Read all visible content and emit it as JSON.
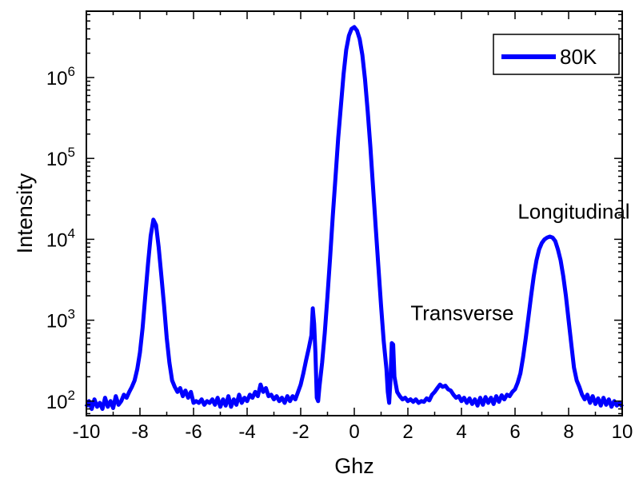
{
  "chart_data": {
    "type": "line",
    "xlabel": "Ghz",
    "ylabel": "Intensity",
    "xlim": [
      -10,
      10
    ],
    "ylim_log10": [
      1.82,
      2.0
    ],
    "ylim_log10_range": [
      1.82,
      6.82
    ],
    "y_scale": "log",
    "grid": false,
    "legend_position": "top-right",
    "x_ticks": [
      "-10",
      "-8",
      "-6",
      "-4",
      "-2",
      "0",
      "2",
      "4",
      "6",
      "8",
      "10"
    ],
    "y_ticks": [
      {
        "base": "10",
        "exp": "2",
        "value": 100
      },
      {
        "base": "10",
        "exp": "3",
        "value": 1000
      },
      {
        "base": "10",
        "exp": "4",
        "value": 10000
      },
      {
        "base": "10",
        "exp": "5",
        "value": 100000
      },
      {
        "base": "10",
        "exp": "6",
        "value": 1000000
      }
    ],
    "annotations": [
      {
        "text": "Transverse",
        "x": 2.1,
        "y": 1000
      },
      {
        "text": "Longitudinal",
        "x": 6.1,
        "y": 18000
      }
    ],
    "series": [
      {
        "name": "80K",
        "color": "#0000ff",
        "points": [
          [
            -10,
            85
          ],
          [
            -9.9,
            100
          ],
          [
            -9.8,
            80
          ],
          [
            -9.7,
            105
          ],
          [
            -9.6,
            85
          ],
          [
            -9.5,
            95
          ],
          [
            -9.4,
            80
          ],
          [
            -9.3,
            110
          ],
          [
            -9.2,
            85
          ],
          [
            -9.1,
            100
          ],
          [
            -9.0,
            82
          ],
          [
            -8.9,
            115
          ],
          [
            -8.8,
            90
          ],
          [
            -8.7,
            100
          ],
          [
            -8.6,
            120
          ],
          [
            -8.5,
            110
          ],
          [
            -8.4,
            130
          ],
          [
            -8.3,
            150
          ],
          [
            -8.2,
            180
          ],
          [
            -8.1,
            250
          ],
          [
            -8.0,
            400
          ],
          [
            -7.9,
            800
          ],
          [
            -7.8,
            2000
          ],
          [
            -7.7,
            5000
          ],
          [
            -7.6,
            11000
          ],
          [
            -7.5,
            17500
          ],
          [
            -7.4,
            15000
          ],
          [
            -7.3,
            8000
          ],
          [
            -7.2,
            3500
          ],
          [
            -7.1,
            1500
          ],
          [
            -7.0,
            600
          ],
          [
            -6.9,
            300
          ],
          [
            -6.8,
            180
          ],
          [
            -6.7,
            150
          ],
          [
            -6.6,
            130
          ],
          [
            -6.5,
            145
          ],
          [
            -6.4,
            115
          ],
          [
            -6.3,
            135
          ],
          [
            -6.2,
            110
          ],
          [
            -6.1,
            130
          ],
          [
            -6.0,
            95
          ],
          [
            -5.9,
            100
          ],
          [
            -5.8,
            95
          ],
          [
            -5.7,
            105
          ],
          [
            -5.6,
            90
          ],
          [
            -5.5,
            100
          ],
          [
            -5.4,
            95
          ],
          [
            -5.3,
            105
          ],
          [
            -5.2,
            90
          ],
          [
            -5.1,
            110
          ],
          [
            -5.0,
            85
          ],
          [
            -4.9,
            105
          ],
          [
            -4.8,
            88
          ],
          [
            -4.7,
            115
          ],
          [
            -4.6,
            85
          ],
          [
            -4.5,
            105
          ],
          [
            -4.4,
            90
          ],
          [
            -4.3,
            120
          ],
          [
            -4.2,
            95
          ],
          [
            -4.1,
            110
          ],
          [
            -4.0,
            100
          ],
          [
            -3.9,
            120
          ],
          [
            -3.8,
            110
          ],
          [
            -3.7,
            130
          ],
          [
            -3.6,
            115
          ],
          [
            -3.5,
            160
          ],
          [
            -3.4,
            130
          ],
          [
            -3.3,
            145
          ],
          [
            -3.2,
            115
          ],
          [
            -3.1,
            120
          ],
          [
            -3.0,
            105
          ],
          [
            -2.9,
            115
          ],
          [
            -2.8,
            100
          ],
          [
            -2.7,
            110
          ],
          [
            -2.6,
            95
          ],
          [
            -2.5,
            115
          ],
          [
            -2.4,
            100
          ],
          [
            -2.3,
            115
          ],
          [
            -2.2,
            105
          ],
          [
            -2.1,
            130
          ],
          [
            -2.0,
            160
          ],
          [
            -1.9,
            220
          ],
          [
            -1.8,
            320
          ],
          [
            -1.7,
            450
          ],
          [
            -1.6,
            650
          ],
          [
            -1.55,
            1400
          ],
          [
            -1.5,
            900
          ],
          [
            -1.45,
            400
          ],
          [
            -1.4,
            110
          ],
          [
            -1.35,
            100
          ],
          [
            -1.3,
            150
          ],
          [
            -1.2,
            300
          ],
          [
            -1.1,
            700
          ],
          [
            -1.0,
            2000
          ],
          [
            -0.9,
            6000
          ],
          [
            -0.8,
            20000
          ],
          [
            -0.7,
            60000
          ],
          [
            -0.6,
            180000
          ],
          [
            -0.5,
            450000
          ],
          [
            -0.4,
            1100000
          ],
          [
            -0.3,
            2200000
          ],
          [
            -0.2,
            3300000
          ],
          [
            -0.1,
            4000000
          ],
          [
            0.0,
            4200000
          ],
          [
            0.1,
            3800000
          ],
          [
            0.2,
            3000000
          ],
          [
            0.3,
            1900000
          ],
          [
            0.4,
            950000
          ],
          [
            0.5,
            380000
          ],
          [
            0.6,
            140000
          ],
          [
            0.7,
            45000
          ],
          [
            0.8,
            14000
          ],
          [
            0.9,
            4500
          ],
          [
            1.0,
            1500
          ],
          [
            1.1,
            550
          ],
          [
            1.2,
            250
          ],
          [
            1.25,
            130
          ],
          [
            1.3,
            95
          ],
          [
            1.35,
            180
          ],
          [
            1.4,
            520
          ],
          [
            1.45,
            500
          ],
          [
            1.5,
            200
          ],
          [
            1.6,
            130
          ],
          [
            1.7,
            115
          ],
          [
            1.8,
            105
          ],
          [
            1.9,
            110
          ],
          [
            2.0,
            100
          ],
          [
            2.1,
            105
          ],
          [
            2.2,
            98
          ],
          [
            2.3,
            105
          ],
          [
            2.4,
            95
          ],
          [
            2.5,
            100
          ],
          [
            2.6,
            98
          ],
          [
            2.7,
            108
          ],
          [
            2.8,
            102
          ],
          [
            2.9,
            120
          ],
          [
            3.0,
            130
          ],
          [
            3.1,
            145
          ],
          [
            3.2,
            160
          ],
          [
            3.3,
            150
          ],
          [
            3.4,
            155
          ],
          [
            3.5,
            140
          ],
          [
            3.6,
            135
          ],
          [
            3.7,
            120
          ],
          [
            3.8,
            110
          ],
          [
            3.9,
            115
          ],
          [
            4.0,
            100
          ],
          [
            4.1,
            110
          ],
          [
            4.2,
            95
          ],
          [
            4.3,
            108
          ],
          [
            4.4,
            92
          ],
          [
            4.5,
            105
          ],
          [
            4.6,
            88
          ],
          [
            4.7,
            110
          ],
          [
            4.8,
            90
          ],
          [
            4.9,
            112
          ],
          [
            5.0,
            95
          ],
          [
            5.1,
            110
          ],
          [
            5.2,
            92
          ],
          [
            5.3,
            115
          ],
          [
            5.4,
            98
          ],
          [
            5.5,
            118
          ],
          [
            5.6,
            105
          ],
          [
            5.7,
            120
          ],
          [
            5.8,
            115
          ],
          [
            5.9,
            130
          ],
          [
            6.0,
            140
          ],
          [
            6.1,
            170
          ],
          [
            6.2,
            220
          ],
          [
            6.3,
            350
          ],
          [
            6.4,
            600
          ],
          [
            6.5,
            1100
          ],
          [
            6.6,
            2000
          ],
          [
            6.7,
            3500
          ],
          [
            6.8,
            5500
          ],
          [
            6.9,
            7500
          ],
          [
            7.0,
            9000
          ],
          [
            7.1,
            10000
          ],
          [
            7.2,
            10500
          ],
          [
            7.3,
            10800
          ],
          [
            7.4,
            10500
          ],
          [
            7.5,
            9500
          ],
          [
            7.6,
            7500
          ],
          [
            7.7,
            5500
          ],
          [
            7.8,
            3500
          ],
          [
            7.9,
            2000
          ],
          [
            8.0,
            1000
          ],
          [
            8.1,
            500
          ],
          [
            8.2,
            260
          ],
          [
            8.3,
            180
          ],
          [
            8.4,
            150
          ],
          [
            8.5,
            120
          ],
          [
            8.6,
            105
          ],
          [
            8.7,
            120
          ],
          [
            8.8,
            95
          ],
          [
            8.9,
            115
          ],
          [
            9.0,
            92
          ],
          [
            9.1,
            108
          ],
          [
            9.2,
            88
          ],
          [
            9.3,
            110
          ],
          [
            9.4,
            90
          ],
          [
            9.5,
            105
          ],
          [
            9.6,
            85
          ],
          [
            9.7,
            100
          ],
          [
            9.8,
            88
          ],
          [
            9.9,
            95
          ],
          [
            10.0,
            85
          ]
        ]
      }
    ]
  }
}
